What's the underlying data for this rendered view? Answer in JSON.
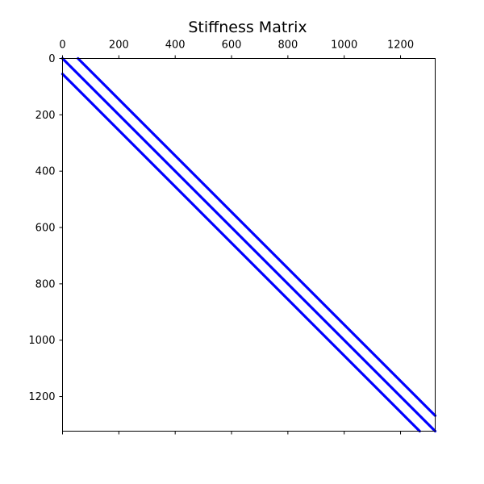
{
  "chart_data": {
    "type": "scatter",
    "title": "Stiffness Matrix",
    "xlabel": "",
    "ylabel": "",
    "xlim": [
      0,
      1323
    ],
    "ylim": [
      1323,
      0
    ],
    "x_ticks": [
      0,
      200,
      400,
      600,
      800,
      1000,
      1200
    ],
    "y_ticks": [
      0,
      200,
      400,
      600,
      800,
      1000,
      1200
    ],
    "grid": false,
    "x_axis_position": "top",
    "series": [
      {
        "color": "#0000ff",
        "points": [
          [
            0,
            0
          ],
          [
            1323,
            1323
          ]
        ]
      },
      {
        "color": "#0000ff",
        "points": [
          [
            55,
            0
          ],
          [
            1323,
            1268
          ]
        ]
      },
      {
        "color": "#0000ff",
        "points": [
          [
            0,
            55
          ],
          [
            1268,
            1323
          ]
        ]
      }
    ]
  }
}
